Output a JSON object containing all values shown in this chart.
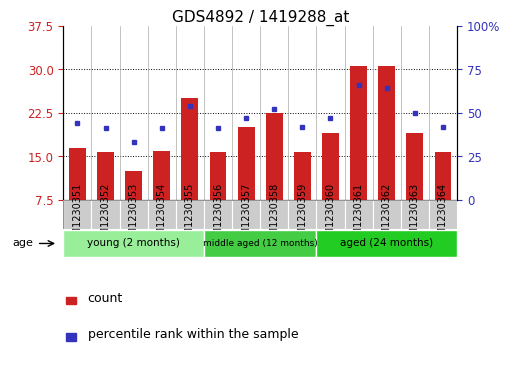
{
  "title": "GDS4892 / 1419288_at",
  "samples": [
    "GSM1230351",
    "GSM1230352",
    "GSM1230353",
    "GSM1230354",
    "GSM1230355",
    "GSM1230356",
    "GSM1230357",
    "GSM1230358",
    "GSM1230359",
    "GSM1230360",
    "GSM1230361",
    "GSM1230362",
    "GSM1230363",
    "GSM1230364"
  ],
  "counts": [
    16.5,
    15.8,
    12.5,
    16.0,
    25.0,
    15.8,
    20.0,
    22.5,
    15.8,
    19.0,
    30.5,
    30.5,
    19.0,
    15.8
  ],
  "percentiles": [
    44,
    41,
    33,
    41,
    54,
    41,
    47,
    52,
    42,
    47,
    66,
    64,
    50,
    42
  ],
  "ylim_left": [
    7.5,
    37.5
  ],
  "ylim_right": [
    0,
    100
  ],
  "yticks_left": [
    7.5,
    15.0,
    22.5,
    30.0,
    37.5
  ],
  "yticks_right": [
    0,
    25,
    50,
    75,
    100
  ],
  "ytick_labels_right": [
    "0",
    "25",
    "50",
    "75",
    "100%"
  ],
  "bar_color": "#cc2222",
  "dot_color": "#3333bb",
  "bar_baseline": 7.5,
  "groups": [
    {
      "label": "young (2 months)",
      "start": 0,
      "end": 5,
      "color": "#99ee99"
    },
    {
      "label": "middle aged (12 months)",
      "start": 5,
      "end": 9,
      "color": "#44cc44"
    },
    {
      "label": "aged (24 months)",
      "start": 9,
      "end": 14,
      "color": "#22cc22"
    }
  ],
  "age_label": "age",
  "legend_count_label": "count",
  "legend_percentile_label": "percentile rank within the sample",
  "background_color": "#ffffff",
  "plot_bg_color": "#ffffff",
  "sample_box_color": "#cccccc",
  "tick_label_color_left": "#cc2222",
  "tick_label_color_right": "#3333bb",
  "title_fontsize": 11,
  "axis_fontsize": 8.5,
  "legend_fontsize": 9,
  "sample_fontsize": 7
}
